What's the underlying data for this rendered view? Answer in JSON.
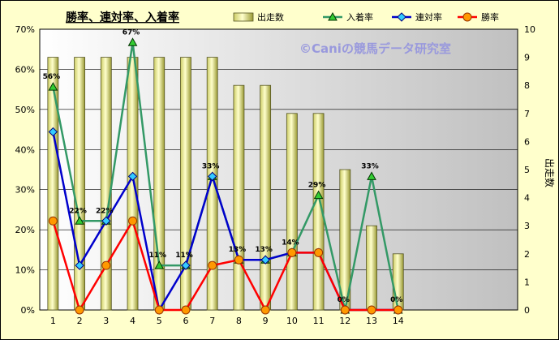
{
  "chart_data": {
    "type": "bar",
    "title": "勝率、連対率、入着率",
    "watermark": "©Caniの競馬データ研究室",
    "categories": [
      "1",
      "2",
      "3",
      "4",
      "5",
      "6",
      "7",
      "8",
      "9",
      "10",
      "11",
      "12",
      "13",
      "14"
    ],
    "y_left_ticks": [
      "0%",
      "10%",
      "20%",
      "30%",
      "40%",
      "50%",
      "60%",
      "70%"
    ],
    "y_right_ticks": [
      "0",
      "1",
      "2",
      "3",
      "4",
      "5",
      "6",
      "7",
      "8",
      "9",
      "10"
    ],
    "y_left_lim": [
      0,
      70
    ],
    "y_right_lim": [
      0,
      10
    ],
    "y_right_label": "出走数",
    "legend_position": "top",
    "grid": true,
    "series": [
      {
        "name": "出走数",
        "kind": "bar",
        "axis": "right",
        "color": "#eeee99",
        "values": [
          9,
          9,
          9,
          9,
          9,
          9,
          9,
          8,
          8,
          7,
          7,
          5,
          3,
          2
        ]
      },
      {
        "name": "入着率",
        "kind": "line",
        "axis": "left",
        "color": "#339966",
        "marker": "triangle",
        "values": [
          55.6,
          22.2,
          22.2,
          66.7,
          11.1,
          11.1,
          33.3,
          12.5,
          12.5,
          14.3,
          28.6,
          0,
          33.3,
          0
        ]
      },
      {
        "name": "連対率",
        "kind": "line",
        "axis": "left",
        "color": "#0000cc",
        "marker": "diamond",
        "values": [
          44.4,
          11.1,
          22.2,
          33.3,
          0,
          11.1,
          33.3,
          12.5,
          12.5,
          14.3,
          14.3,
          0,
          0,
          0
        ]
      },
      {
        "name": "勝率",
        "kind": "line",
        "axis": "left",
        "color": "#ff0000",
        "marker": "circle",
        "values": [
          22.2,
          0,
          11.1,
          22.2,
          0,
          0,
          11.1,
          12.5,
          0,
          14.3,
          14.3,
          0,
          0,
          0
        ]
      }
    ],
    "data_labels": [
      "56%",
      "22%",
      "22%",
      "67%",
      "11%",
      "11%",
      "33%",
      "13%",
      "13%",
      "14%",
      "29%",
      "0%",
      "33%",
      "0%"
    ]
  }
}
